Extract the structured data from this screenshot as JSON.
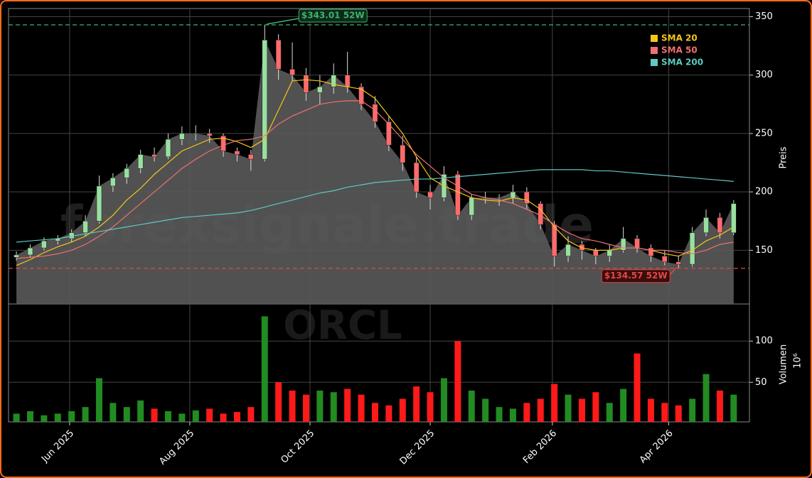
{
  "chart_data": {
    "type": "candlestick",
    "watermark": "forexsignale.trade",
    "symbol": "ORCL",
    "y_label": "Preis",
    "y2_label": "Volumen",
    "y2_offset_label": "10⁶",
    "x": [
      "2025-05-05",
      "2025-05-12",
      "2025-05-19",
      "2025-05-26",
      "2025-06-02",
      "2025-06-09",
      "2025-06-16",
      "2025-06-23",
      "2025-06-30",
      "2025-07-07",
      "2025-07-14",
      "2025-07-21",
      "2025-07-28",
      "2025-08-04",
      "2025-08-11",
      "2025-08-18",
      "2025-08-25",
      "2025-09-01",
      "2025-09-08",
      "2025-09-15",
      "2025-09-22",
      "2025-09-29",
      "2025-10-06",
      "2025-10-13",
      "2025-10-20",
      "2025-10-27",
      "2025-11-03",
      "2025-11-10",
      "2025-11-17",
      "2025-11-24",
      "2025-12-01",
      "2025-12-08",
      "2025-12-15",
      "2025-12-22",
      "2025-12-29",
      "2026-01-05",
      "2026-01-12",
      "2026-01-19",
      "2026-01-26",
      "2026-02-02",
      "2026-02-09",
      "2026-02-16",
      "2026-02-23",
      "2026-03-02",
      "2026-03-09",
      "2026-03-16",
      "2026-03-23",
      "2026-03-30",
      "2026-04-06",
      "2026-04-13",
      "2026-04-20",
      "2026-04-27",
      "2026-05-04"
    ],
    "xlim": [
      "2025-05-01",
      "2026-05-12"
    ],
    "xticks": [
      {
        "value": "2025-06-01",
        "label": "Jun 2025"
      },
      {
        "value": "2025-08-01",
        "label": "Aug 2025"
      },
      {
        "value": "2025-10-01",
        "label": "Oct 2025"
      },
      {
        "value": "2025-12-01",
        "label": "Dec 2025"
      },
      {
        "value": "2026-02-01",
        "label": "Feb 2026"
      },
      {
        "value": "2026-04-01",
        "label": "Apr 2026"
      }
    ],
    "ohlc": {
      "open": [
        144,
        146,
        152,
        158,
        160,
        165,
        175,
        205,
        212,
        220,
        232,
        230,
        245,
        250,
        250,
        248,
        235,
        232,
        228,
        330,
        305,
        300,
        285,
        290,
        300,
        290,
        275,
        260,
        240,
        225,
        200,
        195,
        215,
        180,
        195,
        195,
        195,
        200,
        190,
        172,
        145,
        155,
        150,
        145,
        150,
        160,
        152,
        145,
        140,
        138,
        165,
        178,
        165
      ],
      "high": [
        149,
        155,
        161,
        163,
        168,
        180,
        214,
        216,
        224,
        236,
        238,
        250,
        256,
        257,
        254,
        250,
        238,
        236,
        343.01,
        335,
        328,
        306,
        300,
        310,
        320,
        293,
        282,
        265,
        248,
        230,
        206,
        222,
        218,
        198,
        200,
        198,
        206,
        204,
        192,
        175,
        162,
        158,
        152,
        155,
        170,
        163,
        155,
        150,
        145,
        170,
        185,
        182,
        193
      ],
      "low": [
        141,
        144,
        150,
        155,
        157,
        162,
        173,
        200,
        207,
        216,
        226,
        228,
        240,
        244,
        242,
        230,
        226,
        218,
        226,
        296,
        295,
        278,
        275,
        284,
        285,
        270,
        255,
        235,
        218,
        195,
        185,
        192,
        176,
        176,
        190,
        188,
        190,
        185,
        168,
        136,
        140,
        142,
        138,
        140,
        148,
        148,
        140,
        137,
        134.57,
        136,
        162,
        160,
        163
      ],
      "close": [
        146,
        152,
        158,
        160,
        165,
        175,
        205,
        212,
        220,
        232,
        230,
        245,
        250,
        250,
        248,
        235,
        232,
        228,
        330,
        305,
        300,
        285,
        290,
        300,
        290,
        275,
        260,
        240,
        225,
        200,
        195,
        215,
        180,
        195,
        195,
        195,
        200,
        190,
        172,
        145,
        155,
        150,
        145,
        150,
        160,
        152,
        145,
        140,
        138,
        165,
        178,
        165,
        190
      ]
    },
    "up_color": "#98e0a0",
    "down_color": "#ff6b6b",
    "area_color": "#5a5a5a",
    "series": [
      {
        "name": "SMA 20",
        "color": "#f5c518",
        "values": [
          137,
          142,
          148,
          153,
          157,
          162,
          170,
          180,
          193,
          203,
          215,
          225,
          235,
          240,
          245,
          246,
          243,
          238,
          245,
          270,
          295,
          296,
          295,
          292,
          290,
          288,
          280,
          265,
          250,
          230,
          212,
          205,
          200,
          195,
          193,
          192,
          195,
          193,
          185,
          170,
          158,
          152,
          150,
          150,
          152,
          152,
          150,
          147,
          145,
          150,
          158,
          163,
          170
        ]
      },
      {
        "name": "SMA 50",
        "color": "#f07070",
        "values": [
          143,
          144,
          145,
          147,
          150,
          155,
          162,
          170,
          180,
          190,
          200,
          210,
          220,
          228,
          235,
          240,
          244,
          245,
          248,
          258,
          265,
          270,
          275,
          277,
          278,
          278,
          270,
          258,
          245,
          232,
          222,
          212,
          205,
          198,
          195,
          193,
          190,
          185,
          180,
          172,
          165,
          160,
          158,
          155,
          152,
          152,
          150,
          150,
          148,
          147,
          150,
          155,
          157
        ]
      },
      {
        "name": "SMA 200",
        "color": "#5fc9c0",
        "values": [
          157,
          158,
          159,
          160,
          162,
          164,
          166,
          168,
          170,
          172,
          174,
          176,
          178,
          179,
          180,
          181,
          182,
          184,
          187,
          190,
          193,
          196,
          199,
          201,
          204,
          206,
          208,
          209,
          210,
          211,
          211,
          212,
          213,
          214,
          215,
          216,
          217,
          218,
          219,
          219,
          219,
          219,
          218,
          218,
          217,
          216,
          215,
          214,
          213,
          212,
          211,
          210,
          209
        ]
      }
    ],
    "volume": [
      12,
      15,
      10,
      12,
      15,
      20,
      55,
      25,
      20,
      28,
      18,
      15,
      12,
      16,
      18,
      12,
      14,
      20,
      130,
      50,
      40,
      35,
      40,
      38,
      42,
      35,
      25,
      22,
      30,
      45,
      38,
      55,
      100,
      40,
      30,
      20,
      18,
      25,
      30,
      48,
      35,
      30,
      38,
      25,
      42,
      85,
      30,
      25,
      22,
      30,
      60,
      40,
      35
    ],
    "volume_up_color": "#228b22",
    "volume_down_color": "#ff1a1a",
    "ylim": [
      104,
      357
    ],
    "yticks": [
      150,
      200,
      250,
      300,
      350
    ],
    "y2lim": [
      2,
      145
    ],
    "y2ticks": [
      50,
      100
    ],
    "hlines": [
      {
        "value": 343.01,
        "label": "$343.01 52W",
        "color": "#3cb371"
      },
      {
        "value": 134.57,
        "label": "$134.57 52W",
        "color": "#e04848"
      }
    ],
    "grid": true,
    "legend": "upper right"
  }
}
